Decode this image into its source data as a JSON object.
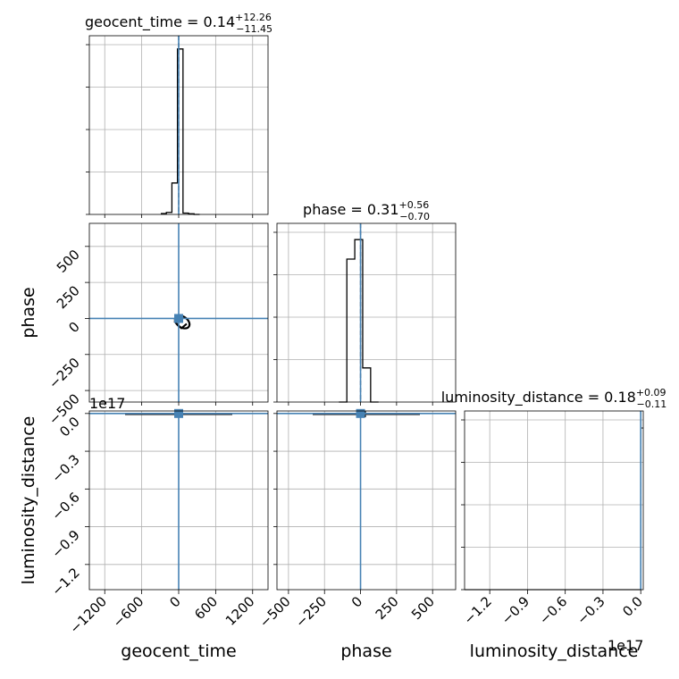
{
  "chart_data": {
    "type": "corner",
    "parameters": [
      "geocent_time",
      "phase",
      "luminosity_distance"
    ],
    "axis_labels": {
      "geocent_time": "geocent_time",
      "phase": "phase",
      "luminosity_distance": "luminosity_distance"
    },
    "titles": [
      {
        "param": "geocent_time",
        "name": "geocent_time",
        "median": "0.14",
        "plus": "+12.26",
        "minus": "−11.45"
      },
      {
        "param": "phase",
        "name": "phase",
        "median": "0.31",
        "plus": "+0.56",
        "minus": "−0.70"
      },
      {
        "param": "luminosity_distance",
        "name": "luminosity_distance",
        "median": "0.18",
        "plus": "+0.09",
        "minus": "−0.11"
      }
    ],
    "ranges": {
      "geocent_time": [
        -1450,
        1450
      ],
      "phase": [
        -580,
        660
      ],
      "luminosity_distance": [
        -1.4e+17,
        2000000000000000.0
      ]
    },
    "ticks": {
      "geocent_time": [
        {
          "v": -1200,
          "label": "−1200"
        },
        {
          "v": -600,
          "label": "−600"
        },
        {
          "v": 0,
          "label": "0"
        },
        {
          "v": 600,
          "label": "600"
        },
        {
          "v": 1200,
          "label": "1200"
        }
      ],
      "phase": [
        {
          "v": -500,
          "label": "−500"
        },
        {
          "v": -250,
          "label": "−250"
        },
        {
          "v": 0,
          "label": "0"
        },
        {
          "v": 250,
          "label": "250"
        },
        {
          "v": 500,
          "label": "500"
        }
      ],
      "luminosity_distance": [
        {
          "v": -1.2e+17,
          "label": "−1.2"
        },
        {
          "v": -9e+16,
          "label": "−0.9"
        },
        {
          "v": -6e+16,
          "label": "−0.6"
        },
        {
          "v": -3e+16,
          "label": "−0.3"
        },
        {
          "v": 0,
          "label": "0.0"
        }
      ]
    },
    "offset_text": "1e17",
    "truths": {
      "geocent_time": 0,
      "phase": 0,
      "luminosity_distance": 0
    },
    "truth_color": "#4682b4",
    "hist_color": "#000000",
    "histograms": {
      "geocent_time": {
        "edges": [
          -290,
          -200,
          -110,
          -20,
          70,
          160,
          250,
          340
        ],
        "counts": [
          0.005,
          0.012,
          0.19,
          1.0,
          0.008,
          0.004,
          0.0
        ],
        "medians_dashed": [
          0
        ],
        "ymax": 1.08
      },
      "phase": {
        "edges": [
          -150,
          -95,
          -40,
          15,
          70,
          125
        ],
        "counts": [
          0.0,
          0.88,
          1.0,
          0.21,
          0.0
        ],
        "medians_dashed": [
          0
        ],
        "ymax": 1.1
      },
      "luminosity_distance": {
        "edges": [
          -1.4e+17,
          0.0,
          2000000000000000.0
        ],
        "counts": [
          0.0,
          0.95
        ],
        "medians_dashed": [
          0
        ],
        "ymax": 1.05
      }
    }
  }
}
